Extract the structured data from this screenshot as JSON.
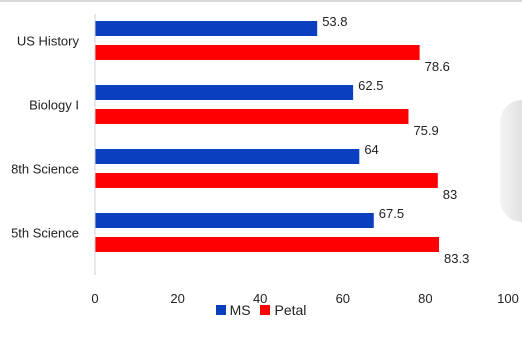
{
  "chart_data": {
    "type": "bar",
    "orientation": "horizontal",
    "categories": [
      "US History",
      "Biology I",
      "8th Science",
      "5th Science"
    ],
    "series": [
      {
        "name": "MS",
        "color": "#0a3fbf",
        "values": [
          53.8,
          62.5,
          64,
          67.5
        ]
      },
      {
        "name": "Petal",
        "color": "#ff0000",
        "values": [
          78.6,
          75.9,
          83,
          83.3
        ]
      }
    ],
    "value_labels": [
      [
        "53.8",
        "62.5",
        "64",
        "67.5"
      ],
      [
        "78.6",
        "75.9",
        "83",
        "83.3"
      ]
    ],
    "xlim": [
      0,
      100
    ],
    "xticks": [
      "0",
      "20",
      "40",
      "60",
      "80",
      "100"
    ],
    "grid": false,
    "legend_position": "bottom",
    "title": "",
    "xlabel": "",
    "ylabel": ""
  }
}
